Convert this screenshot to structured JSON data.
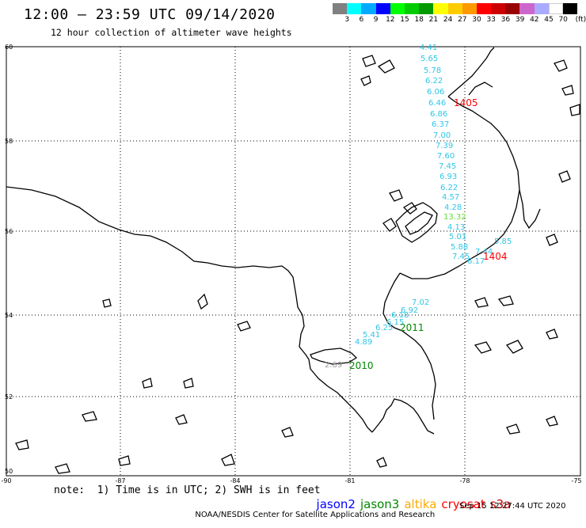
{
  "header": {
    "title": "12:00 – 23:59 UTC 09/14/2020",
    "subtitle": "12 hour collection of altimeter wave heights"
  },
  "scale": {
    "colors": [
      "#808080",
      "#00ffff",
      "#00aaff",
      "#0000ff",
      "#00ff00",
      "#00cc00",
      "#009900",
      "#ffff00",
      "#ffcc00",
      "#ff9900",
      "#ff0000",
      "#cc0000",
      "#990000",
      "#cc66cc",
      "#aaaaff",
      "#ffffff",
      "#000000"
    ],
    "labels": [
      "3",
      "6",
      "9",
      "12",
      "15",
      "18",
      "21",
      "24",
      "27",
      "30",
      "33",
      "36",
      "39",
      "42",
      "45",
      "70"
    ],
    "unit": "(ft)"
  },
  "axes": {
    "lat_labels": [
      "60",
      "58",
      "56",
      "54",
      "52",
      "50"
    ],
    "lon_labels": [
      "-90",
      "-87",
      "-84",
      "-81",
      "-78",
      "-75"
    ]
  },
  "tracks": [
    {
      "name": "track-1405",
      "color": "#2fc6e6",
      "values": [
        "4.41",
        "5.65",
        "5.78",
        "6.22",
        "6.06",
        "6.46",
        "6.86",
        "6.37",
        "7.00",
        "7.39",
        "7.60",
        "7.45",
        "6.93",
        "6.22",
        "4.57",
        "4.28",
        "13.32",
        "4.13",
        "5.01",
        "5.88",
        "7.45",
        "7.44",
        "6.17",
        "5.85"
      ]
    },
    {
      "name": "track-2011",
      "color": "#2fc6e6",
      "values": [
        "7.02",
        "6.92",
        "6.18",
        "6.15",
        "6.25",
        "5.41",
        "4.89"
      ]
    },
    {
      "name": "track-2010",
      "color": "#999999",
      "values": [
        "2.89"
      ]
    }
  ],
  "pass_labels": [
    {
      "text": "1405",
      "color": "#ff0000"
    },
    {
      "text": "1404",
      "color": "#ff0000"
    },
    {
      "text": "2011",
      "color": "#008800"
    },
    {
      "text": "2010",
      "color": "#008800"
    }
  ],
  "note": "note:  1) Time is in UTC; 2) SWH is in feet",
  "satellites": [
    {
      "name": "jason2",
      "color": "#0000ff"
    },
    {
      "name": "jason3",
      "color": "#008800"
    },
    {
      "name": "altika",
      "color": "#ffaa00"
    },
    {
      "name": "cryosat",
      "color": "#ff0000"
    },
    {
      "name": "s3a",
      "color": "#cc0000"
    }
  ],
  "footer": {
    "credit": "NOAA/NESDIS Center for Satellite Applications and Research",
    "timestamp": "Sep 15 12:27:44 UTC 2020"
  }
}
